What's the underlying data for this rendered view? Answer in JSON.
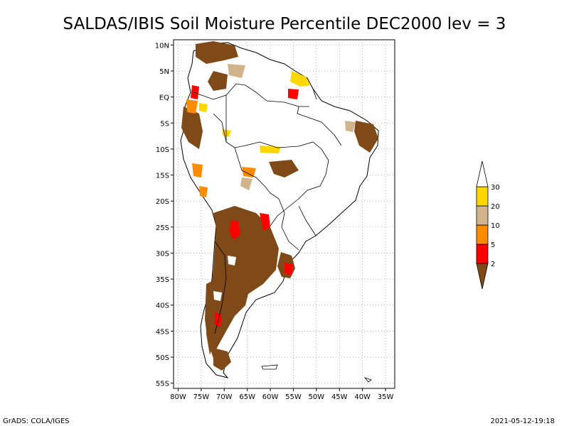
{
  "title": "SALDAS/IBIS Soil Moisture Percentile DEC2000 lev = 3",
  "map": {
    "region": "South America",
    "lon_range": [
      -81,
      -33
    ],
    "lat_range": [
      -56,
      11
    ],
    "lon_ticks": [
      "80W",
      "75W",
      "70W",
      "65W",
      "60W",
      "55W",
      "50W",
      "45W",
      "40W",
      "35W"
    ],
    "lat_ticks": [
      "10N",
      "5N",
      "EQ",
      "5S",
      "10S",
      "15S",
      "20S",
      "25S",
      "30S",
      "35S",
      "40S",
      "45S",
      "50S",
      "55S"
    ],
    "grid": "dotted"
  },
  "legend": {
    "labels": [
      "2",
      "5",
      "10",
      "20",
      "30"
    ],
    "colors": [
      "#7f4a17",
      "#ff0000",
      "#ff8c00",
      "#d2b48c",
      "#ffd700",
      "#ffffff"
    ]
  },
  "footer": {
    "left": "GrADS: COLA/IGES",
    "right": "2021-05-12-19:18"
  }
}
